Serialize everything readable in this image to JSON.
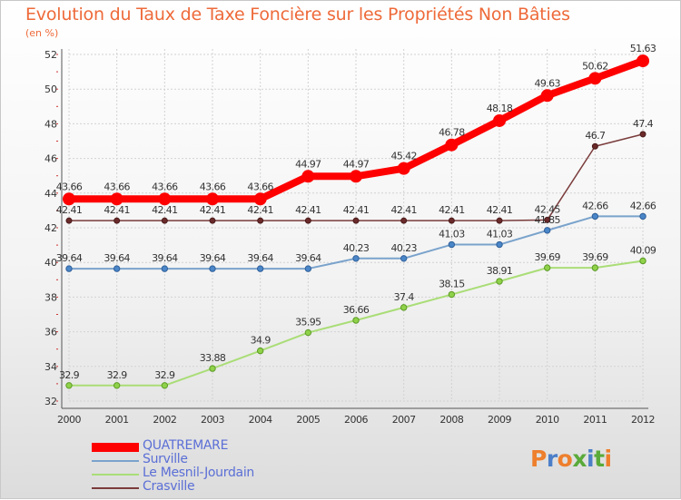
{
  "header": {
    "title": "Evolution du Taux de Taxe Foncière sur les Propriétés Non Bâties",
    "unit": "(en %)"
  },
  "chart_data": {
    "type": "line",
    "title": "Evolution du Taux de Taxe Foncière sur les Propriétés Non Bâties",
    "ylabel": "(en %)",
    "xlabel": "",
    "x": [
      "2000",
      "2001",
      "2002",
      "2003",
      "2004",
      "2005",
      "2006",
      "2007",
      "2008",
      "2009",
      "2010",
      "2011",
      "2012"
    ],
    "ylim": [
      32,
      52
    ],
    "yticks": [
      32,
      34,
      36,
      38,
      40,
      42,
      44,
      46,
      48,
      50,
      52
    ],
    "grid": true,
    "legend_position": "bottom-left",
    "series": [
      {
        "name": "QUATREMARE",
        "color": "#ff0000",
        "values": [
          43.66,
          43.66,
          43.66,
          43.66,
          43.66,
          44.97,
          44.97,
          45.42,
          46.78,
          48.18,
          49.63,
          50.62,
          51.63
        ],
        "labels": [
          "43.66",
          "43.66",
          "43.66",
          "43.66",
          "43.66",
          "44.97",
          "44.97",
          "45.42",
          "46.78",
          "48.18",
          "49.63",
          "50.62",
          "51.63"
        ]
      },
      {
        "name": "Surville",
        "color": "#7aa3cc",
        "values": [
          39.64,
          39.64,
          39.64,
          39.64,
          39.64,
          39.64,
          40.23,
          40.23,
          41.03,
          41.03,
          41.85,
          42.66,
          42.66
        ],
        "labels": [
          "39.64",
          "39.64",
          "39.64",
          "39.64",
          "39.64",
          "39.64",
          "40.23",
          "40.23",
          "41.03",
          "41.03",
          "41.85",
          "42.66",
          "42.66"
        ]
      },
      {
        "name": "Le Mesnil-Jourdain",
        "color": "#aadd77",
        "values": [
          32.9,
          32.9,
          32.9,
          33.88,
          34.9,
          35.95,
          36.66,
          37.4,
          38.15,
          38.91,
          39.69,
          39.69,
          40.09
        ],
        "labels": [
          "32.9",
          "32.9",
          "32.9",
          "33.88",
          "34.9",
          "35.95",
          "36.66",
          "37.4",
          "38.15",
          "38.91",
          "39.69",
          "39.69",
          "40.09"
        ]
      },
      {
        "name": "Crasville",
        "color": "#7a3b3b",
        "values": [
          42.41,
          42.41,
          42.41,
          42.41,
          42.41,
          42.41,
          42.41,
          42.41,
          42.41,
          42.41,
          42.45,
          46.7,
          47.4
        ],
        "labels": [
          "42.41",
          "42.41",
          "42.41",
          "42.41",
          "42.41",
          "42.41",
          "42.41",
          "42.41",
          "42.41",
          "42.41",
          "42.45",
          "46.7",
          "47.4"
        ]
      }
    ]
  },
  "legend": {
    "items": [
      {
        "label": "QUATREMARE",
        "color": "#ff0000"
      },
      {
        "label": "Surville",
        "color": "#7aa3cc"
      },
      {
        "label": "Le Mesnil-Jourdain",
        "color": "#aadd77"
      },
      {
        "label": "Crasville",
        "color": "#7a3b3b"
      }
    ]
  },
  "logo": {
    "text": "Proxiti",
    "letter_colors": [
      "#ee7f2d",
      "#4c7fc8",
      "#ee7f2d",
      "#5aaa3a",
      "#4c7fc8",
      "#5aaa3a",
      "#ee7f2d"
    ]
  }
}
